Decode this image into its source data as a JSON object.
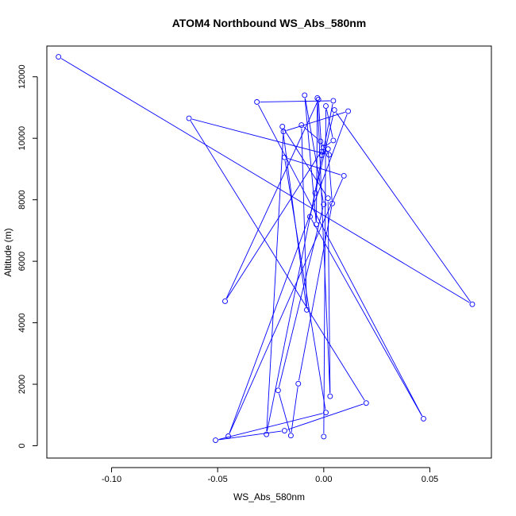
{
  "chart_data": {
    "type": "line",
    "title": "ATOM4 Northbound WS_Abs_580nm",
    "xlabel": "WS_Abs_580nm",
    "ylabel": "Altitude (m)",
    "xlim": [
      -0.1305,
      0.079
    ],
    "ylim": [
      -400,
      13000
    ],
    "x_ticks": [
      -0.1,
      -0.05,
      0.0,
      0.05
    ],
    "x_tick_labels": [
      "-0.10",
      "-0.05",
      "0.00",
      "0.05"
    ],
    "y_ticks": [
      0,
      2000,
      4000,
      6000,
      8000,
      10000,
      12000
    ],
    "y_tick_labels": [
      "0",
      "2000",
      "4000",
      "6000",
      "8000",
      "10000",
      "12000"
    ],
    "grid": false,
    "line_color": "#0000ff",
    "marker": "open-circle",
    "series": [
      {
        "x": [
          -0.125,
          0.07,
          0.005,
          -0.004,
          -0.0065,
          0.047,
          -0.0315,
          0.0045,
          -0.027,
          -0.019,
          0.0115,
          -0.045,
          0.0095,
          -0.0185,
          0.001,
          -0.051,
          -0.0185,
          0.02,
          -0.0635,
          0.0025,
          -0.0015,
          -0.0105,
          -0.008,
          -0.0195,
          0.002,
          0.003,
          -0.003,
          -0.0035,
          -0.009,
          0.0,
          -0.0215,
          -0.0155,
          -0.012,
          0.004,
          0.002,
          -0.001,
          -0.001,
          -0.0025,
          -0.0465,
          0.0,
          0.0045,
          0.001,
          0.0
        ],
        "y": [
          12650,
          4600,
          10920,
          8220,
          7450,
          880,
          11180,
          11220,
          370,
          10220,
          10880,
          310,
          8780,
          9380,
          1080,
          180,
          490,
          1390,
          10650,
          9460,
          9900,
          10430,
          4420,
          10380,
          8050,
          1610,
          11310,
          7200,
          11400,
          7850,
          1800,
          330,
          2020,
          7880,
          9650,
          9450,
          9560,
          11260,
          4700,
          9700,
          9930,
          11050,
          300
        ]
      }
    ]
  }
}
